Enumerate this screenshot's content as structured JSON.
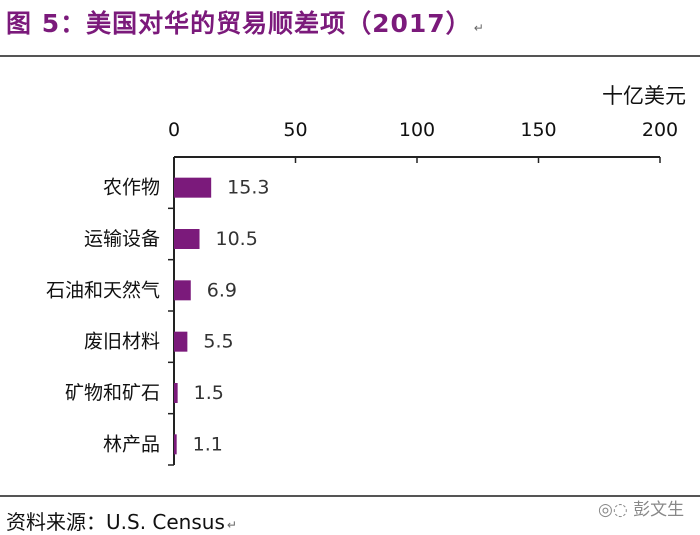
{
  "title": "图 5：美国对华的贸易顺差项（2017）",
  "source": "资料来源：U.S. Census",
  "watermark": "彭文生",
  "colors": {
    "bar": "#7b1a7b",
    "title": "#7b1a7b",
    "axis": "#222222"
  },
  "chart_data": {
    "type": "bar",
    "orientation": "horizontal",
    "unit_label": "十亿美元",
    "categories": [
      "农作物",
      "运输设备",
      "石油和天然气",
      "废旧材料",
      "矿物和矿石",
      "林产品"
    ],
    "values": [
      15.3,
      10.5,
      6.9,
      5.5,
      1.5,
      1.1
    ],
    "data_labels": [
      "15.3",
      "10.5",
      "6.9",
      "5.5",
      "1.5",
      "1.1"
    ],
    "xlim": [
      0,
      200
    ],
    "xticks": [
      0,
      50,
      100,
      150,
      200
    ],
    "xtick_labels": [
      "0",
      "50",
      "100",
      "150",
      "200"
    ],
    "axis_position": "top",
    "grid": false,
    "legend": "none"
  }
}
